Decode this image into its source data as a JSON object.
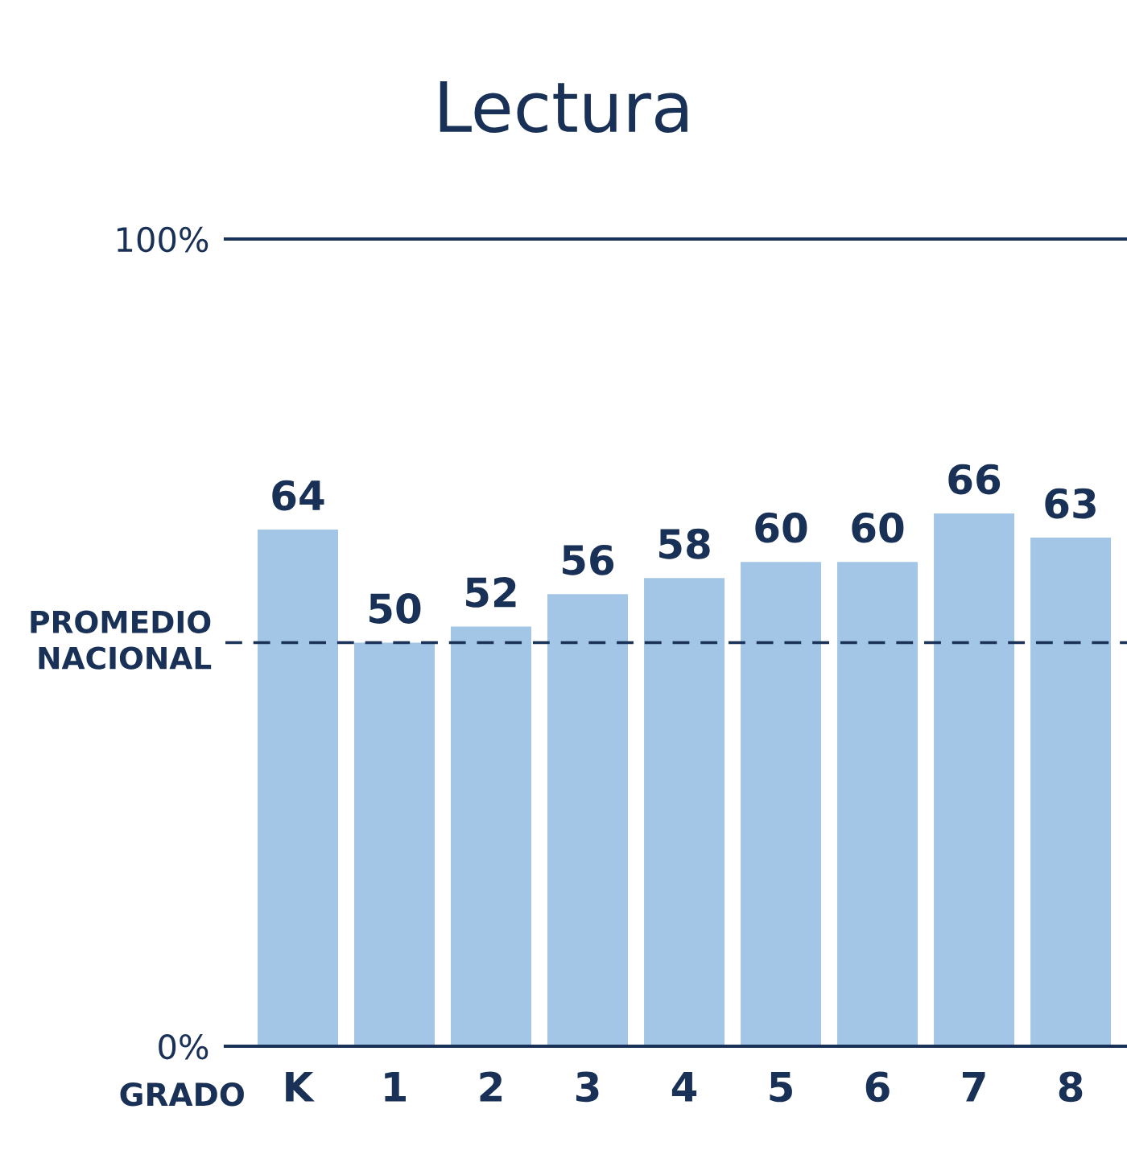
{
  "chart_data": {
    "type": "bar",
    "title": "Lectura",
    "xlabel": "GRADO",
    "categories": [
      "K",
      "1",
      "2",
      "3",
      "4",
      "5",
      "6",
      "7",
      "8"
    ],
    "values": [
      64,
      50,
      52,
      56,
      58,
      60,
      60,
      66,
      63
    ],
    "color": "#a3c6e6",
    "ylim": [
      0,
      100
    ],
    "yticks": [
      {
        "value": 0,
        "label": "0%"
      },
      {
        "value": 100,
        "label": "100%"
      }
    ],
    "grid": false,
    "data_labels": true,
    "ref_lines": [
      {
        "axis": "y",
        "value": 50,
        "label": "PROMEDIO\nNACIONAL",
        "color": "#1a3157",
        "line_style": "dashed"
      }
    ]
  }
}
